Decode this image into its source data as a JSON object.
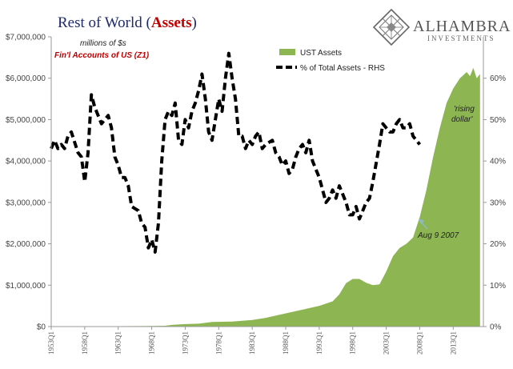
{
  "header": {
    "title_prefix": "Rest of World (",
    "title_emphasis": "Assets",
    "title_suffix": ")",
    "units_note": "millions of $s",
    "source_note": "Fin'l Accounts of US (Z1)"
  },
  "logo": {
    "name": "ALHAMBRA",
    "tagline": "INVESTMENTS",
    "icon": "diamond-lattice-icon"
  },
  "annotations": {
    "aug_2007": "Aug 9 2007",
    "rising_dollar_line1": "'rising",
    "rising_dollar_line2": "dollar'"
  },
  "colors": {
    "area": "#8db653",
    "line": "#000000",
    "title": "#1f2a6b",
    "emphasis": "#c00000",
    "arrow": "#8fb9c9"
  },
  "chart_data": {
    "type": "area",
    "title": "Rest of World (Assets)",
    "xlabel": "",
    "ylabel": "",
    "ylim": [
      0,
      7000000
    ],
    "y2lim": [
      0,
      70
    ],
    "grid": false,
    "legend_position": "top-right",
    "x_tick_labels": [
      "1953Q1",
      "1958Q1",
      "1963Q1",
      "1968Q1",
      "1973Q1",
      "1978Q1",
      "1983Q1",
      "1988Q1",
      "1993Q1",
      "1998Q1",
      "2003Q1",
      "2008Q1",
      "2013Q1"
    ],
    "y_left_tick_labels": [
      "$0",
      "$1,000,000",
      "$2,000,000",
      "$3,000,000",
      "$4,000,000",
      "$5,000,000",
      "$6,000,000",
      "$7,000,000"
    ],
    "y_right_tick_labels": [
      "0%",
      "10%",
      "20%",
      "30%",
      "40%",
      "50%",
      "60%"
    ],
    "series": [
      {
        "name": "UST Assets",
        "kind": "area",
        "axis": "left",
        "points": [
          [
            1953,
            0
          ],
          [
            1958,
            5000
          ],
          [
            1963,
            10000
          ],
          [
            1968,
            15000
          ],
          [
            1970,
            20000
          ],
          [
            1971,
            40000
          ],
          [
            1973,
            60000
          ],
          [
            1975,
            70000
          ],
          [
            1977,
            110000
          ],
          [
            1980,
            120000
          ],
          [
            1983,
            160000
          ],
          [
            1985,
            210000
          ],
          [
            1988,
            320000
          ],
          [
            1990,
            390000
          ],
          [
            1993,
            500000
          ],
          [
            1995,
            610000
          ],
          [
            1996,
            780000
          ],
          [
            1997,
            1050000
          ],
          [
            1998,
            1150000
          ],
          [
            1999,
            1150000
          ],
          [
            2000,
            1060000
          ],
          [
            2001,
            1000000
          ],
          [
            2002,
            1020000
          ],
          [
            2003,
            1330000
          ],
          [
            2004,
            1700000
          ],
          [
            2005,
            1900000
          ],
          [
            2006,
            2000000
          ],
          [
            2007,
            2150000
          ],
          [
            2008,
            2650000
          ],
          [
            2009,
            3300000
          ],
          [
            2010,
            4100000
          ],
          [
            2011,
            4800000
          ],
          [
            2012,
            5400000
          ],
          [
            2013,
            5750000
          ],
          [
            2014,
            6000000
          ],
          [
            2015,
            6150000
          ],
          [
            2015.5,
            6050000
          ],
          [
            2016,
            6250000
          ],
          [
            2016.5,
            6000000
          ],
          [
            2017,
            6100000
          ]
        ]
      },
      {
        "name": "% of Total Assets - RHS",
        "kind": "line",
        "axis": "right",
        "points": [
          [
            1953,
            43
          ],
          [
            1953.5,
            45
          ],
          [
            1954,
            43
          ],
          [
            1954.5,
            44
          ],
          [
            1955,
            43
          ],
          [
            1955.5,
            46
          ],
          [
            1956,
            47
          ],
          [
            1957,
            42
          ],
          [
            1957.5,
            41
          ],
          [
            1958,
            35
          ],
          [
            1958.5,
            42
          ],
          [
            1959,
            56
          ],
          [
            1959.5,
            53
          ],
          [
            1960,
            51
          ],
          [
            1960.5,
            49
          ],
          [
            1961,
            50
          ],
          [
            1961.5,
            51
          ],
          [
            1962,
            48
          ],
          [
            1962.5,
            41
          ],
          [
            1963,
            39
          ],
          [
            1963.5,
            36
          ],
          [
            1964,
            36
          ],
          [
            1964.5,
            34
          ],
          [
            1965,
            29
          ],
          [
            1966,
            28
          ],
          [
            1966.5,
            25
          ],
          [
            1967,
            24
          ],
          [
            1967.5,
            19
          ],
          [
            1968,
            21
          ],
          [
            1968.5,
            18
          ],
          [
            1969,
            25
          ],
          [
            1969.5,
            40
          ],
          [
            1970,
            50
          ],
          [
            1970.5,
            52
          ],
          [
            1971,
            51
          ],
          [
            1971.5,
            54
          ],
          [
            1972,
            45
          ],
          [
            1972.5,
            44
          ],
          [
            1973,
            50
          ],
          [
            1973.5,
            48
          ],
          [
            1974,
            52
          ],
          [
            1974.5,
            54
          ],
          [
            1975,
            57
          ],
          [
            1975.5,
            61
          ],
          [
            1976,
            55
          ],
          [
            1976.5,
            47
          ],
          [
            1977,
            45
          ],
          [
            1977.5,
            50
          ],
          [
            1978,
            55
          ],
          [
            1978.5,
            52
          ],
          [
            1979,
            60
          ],
          [
            1979.5,
            66
          ],
          [
            1980,
            60
          ],
          [
            1980.5,
            55
          ],
          [
            1981,
            46
          ],
          [
            1981.5,
            46
          ],
          [
            1982,
            43
          ],
          [
            1982.5,
            45
          ],
          [
            1983,
            44
          ],
          [
            1983.5,
            46
          ],
          [
            1984,
            47
          ],
          [
            1984.5,
            43
          ],
          [
            1985,
            44
          ],
          [
            1986,
            45
          ],
          [
            1986.5,
            42
          ],
          [
            1987,
            41
          ],
          [
            1987.5,
            39
          ],
          [
            1988,
            40
          ],
          [
            1988.5,
            37
          ],
          [
            1989,
            38
          ],
          [
            1989.5,
            41
          ],
          [
            1990,
            43
          ],
          [
            1990.5,
            44
          ],
          [
            1991,
            42
          ],
          [
            1991.5,
            45
          ],
          [
            1992,
            40
          ],
          [
            1992.5,
            38
          ],
          [
            1993,
            36
          ],
          [
            1993.5,
            33
          ],
          [
            1994,
            30
          ],
          [
            1994.5,
            31
          ],
          [
            1995,
            33
          ],
          [
            1995.5,
            31
          ],
          [
            1996,
            34
          ],
          [
            1996.5,
            32
          ],
          [
            1997,
            30
          ],
          [
            1997.5,
            27
          ],
          [
            1998,
            27
          ],
          [
            1998.5,
            29
          ],
          [
            1999,
            26
          ],
          [
            1999.5,
            28
          ],
          [
            2000,
            30
          ],
          [
            2000.5,
            31
          ],
          [
            2001,
            35
          ],
          [
            2002,
            44
          ],
          [
            2002.5,
            49
          ],
          [
            2003,
            48
          ],
          [
            2003.5,
            47
          ],
          [
            2004,
            47
          ],
          [
            2004.5,
            49
          ],
          [
            2005,
            50
          ],
          [
            2005.5,
            48
          ],
          [
            2006,
            48
          ],
          [
            2006.5,
            49
          ],
          [
            2007,
            46
          ],
          [
            2007.5,
            45
          ],
          [
            2008,
            44
          ]
        ]
      }
    ]
  }
}
